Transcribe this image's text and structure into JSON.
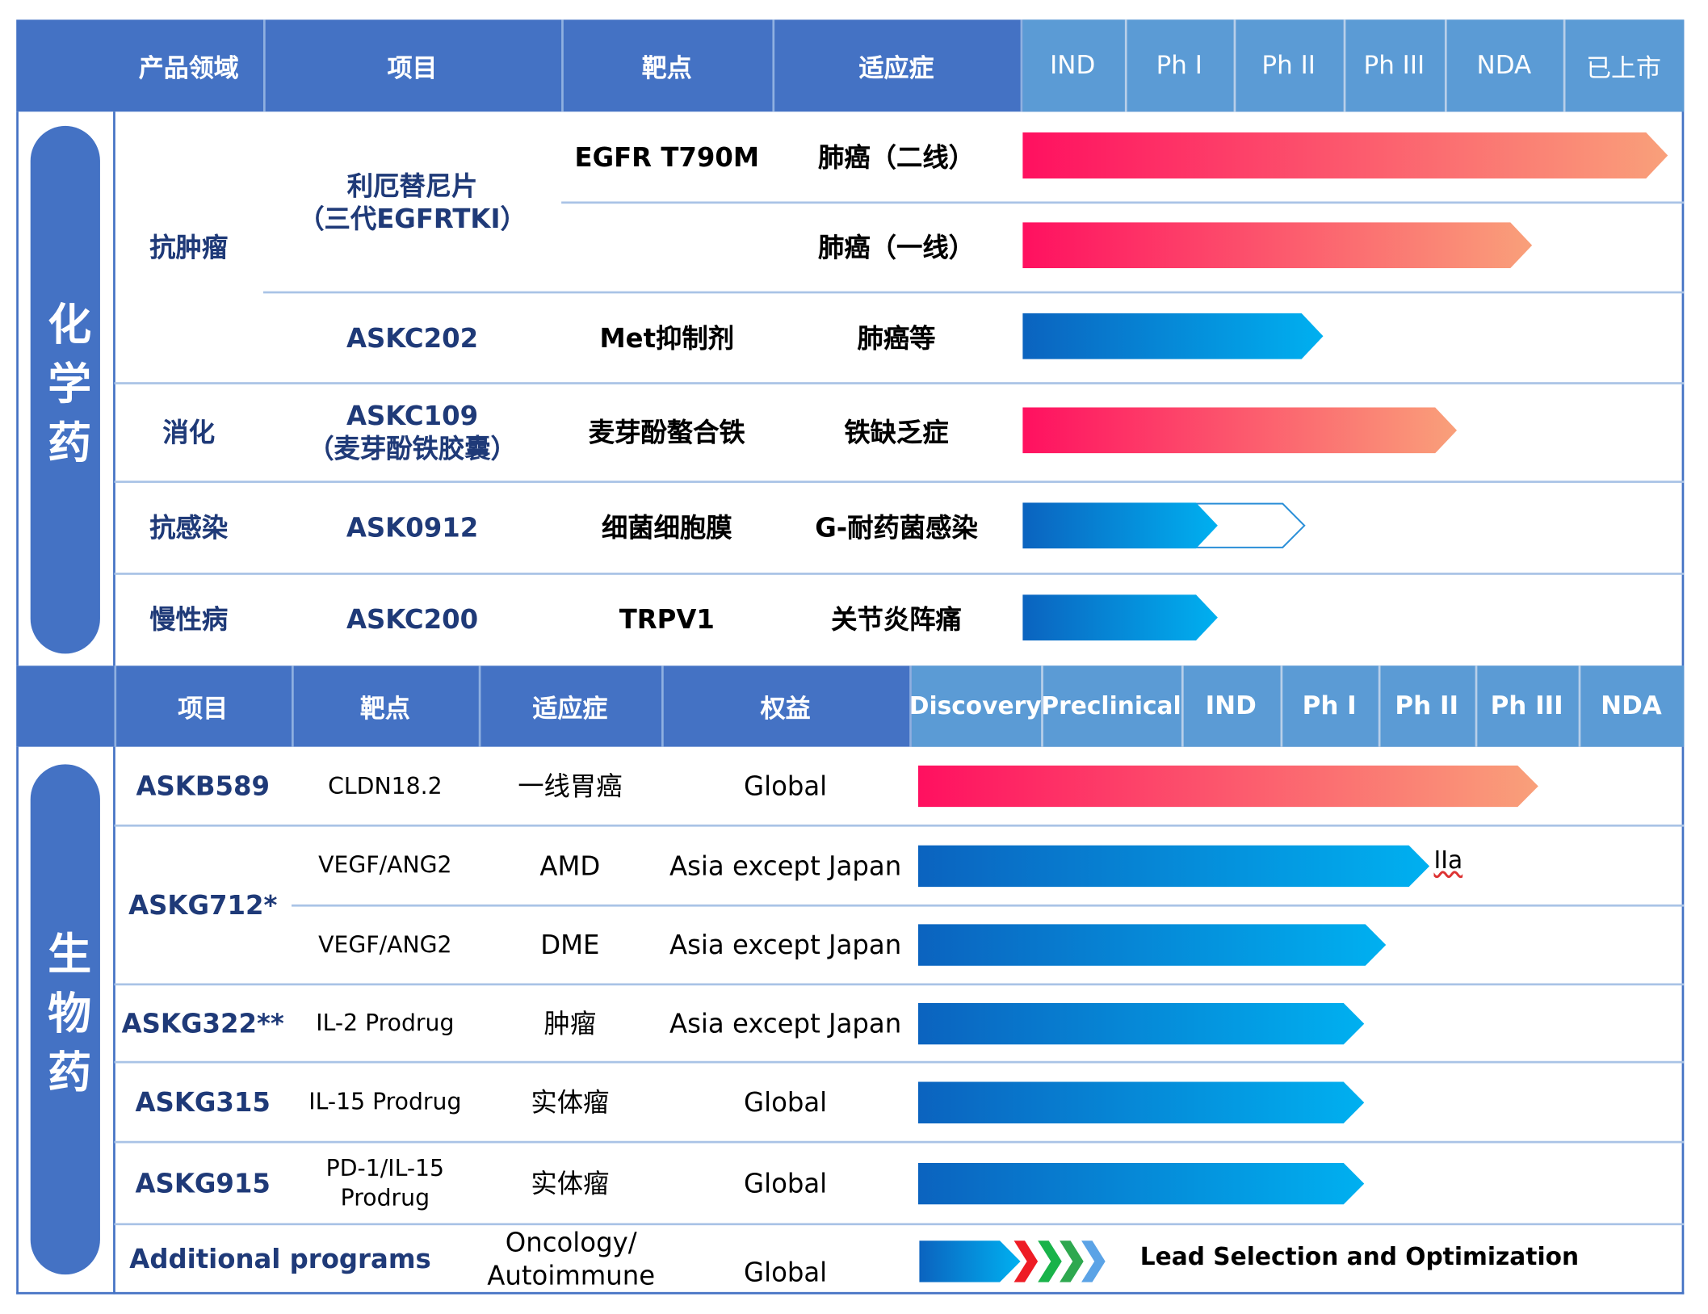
{
  "chem": {
    "side_label": "化学药",
    "headers": [
      "产品领域",
      "项目",
      "靶点",
      "适应症"
    ],
    "phases": [
      "IND",
      "Ph I",
      "Ph II",
      "Ph III",
      "NDA",
      "已上市"
    ],
    "areas": [
      {
        "label": "抗肿瘤"
      },
      {
        "label": "消化"
      },
      {
        "label": "抗感染"
      },
      {
        "label": "慢性病"
      }
    ],
    "rows": [
      {
        "project": "",
        "target": "EGFR T790M",
        "indication": "肺癌（二线）",
        "progress": 5.97,
        "style": "red"
      },
      {
        "project": "",
        "target": "",
        "indication": "肺癌（一线）",
        "progress": 4.67,
        "style": "red"
      },
      {
        "project": "ASKC202",
        "target": "Met抑制剂",
        "indication": "肺癌等",
        "progress": 2.67,
        "style": "blue"
      },
      {
        "project": "ASKC109\n（麦芽酚铁胶囊）",
        "target": "麦芽酚螯合铁",
        "indication": "铁缺乏症",
        "progress": 3.95,
        "style": "red"
      },
      {
        "project": "ASK0912",
        "target": "细菌细胞膜",
        "indication": "G-耐药菌感染",
        "progress": 1.66,
        "ghost_progress": 2.49,
        "style": "blue"
      },
      {
        "project": "ASKC200",
        "target": "TRPV1",
        "indication": "关节炎阵痛",
        "progress": 1.66,
        "style": "blue"
      }
    ],
    "merged_project": "利厄替尼片\n（三代EGFRTKI）"
  },
  "bio": {
    "side_label": "生物药",
    "headers": [
      "项目",
      "靶点",
      "适应症",
      "权益"
    ],
    "phases": [
      "Discovery",
      "Preclinical",
      "IND",
      "Ph I",
      "Ph II",
      "Ph III",
      "NDA"
    ],
    "rows": [
      {
        "project": "ASKB589",
        "target": "CLDN18.2",
        "indication": "一线胃癌",
        "rights": "Global",
        "progress": 4.92,
        "style": "red"
      },
      {
        "project": "",
        "target": "VEGF/ANG2",
        "indication": "AMD",
        "rights": "Asia except Japan",
        "progress": 3.92,
        "style": "blue",
        "note": "IIa"
      },
      {
        "project": "",
        "target": "VEGF/ANG2",
        "indication": "DME",
        "rights": "Asia except Japan",
        "progress": 3.52,
        "style": "blue"
      },
      {
        "project": "ASKG322**",
        "target": "IL-2 Prodrug",
        "indication": "肿瘤",
        "rights": "Asia except Japan",
        "progress": 3.32,
        "style": "blue"
      },
      {
        "project": "ASKG315",
        "target": "IL-15 Prodrug",
        "indication": "实体瘤",
        "rights": "Global",
        "progress": 3.32,
        "style": "blue"
      },
      {
        "project": "ASKG915",
        "target": "PD-1/IL-15\nProdrug",
        "indication": "实体瘤",
        "rights": "Global",
        "progress": 3.32,
        "style": "blue"
      },
      {
        "project": "Additional programs",
        "target": "",
        "indication": "Oncology/\nAutoimmune",
        "rights": "Global",
        "progress": 0.75,
        "style": "chevrons",
        "lead_text": "Lead Selection and Optimization"
      }
    ],
    "merged_project": "ASKG712*"
  },
  "colors": {
    "header": "#4472c4",
    "phase_header": "#5b9bd5",
    "red_start": "#ff1060",
    "red_end": "#f9a07a",
    "blue_start": "#0b63bf",
    "blue_end": "#00b0f0",
    "project_text": "#1f3a78"
  }
}
